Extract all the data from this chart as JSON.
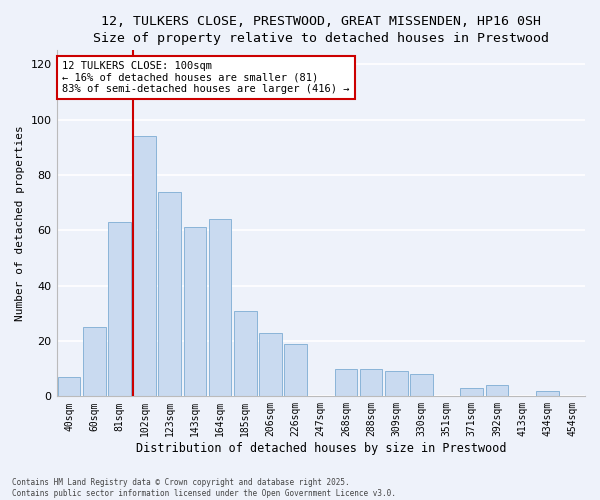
{
  "title": "12, TULKERS CLOSE, PRESTWOOD, GREAT MISSENDEN, HP16 0SH",
  "subtitle": "Size of property relative to detached houses in Prestwood",
  "xlabel": "Distribution of detached houses by size in Prestwood",
  "ylabel": "Number of detached properties",
  "bar_labels": [
    "40sqm",
    "60sqm",
    "81sqm",
    "102sqm",
    "123sqm",
    "143sqm",
    "164sqm",
    "185sqm",
    "206sqm",
    "226sqm",
    "247sqm",
    "268sqm",
    "288sqm",
    "309sqm",
    "330sqm",
    "351sqm",
    "371sqm",
    "392sqm",
    "413sqm",
    "434sqm",
    "454sqm"
  ],
  "bar_values": [
    7,
    25,
    63,
    94,
    74,
    61,
    64,
    31,
    23,
    19,
    0,
    10,
    10,
    9,
    8,
    0,
    3,
    4,
    0,
    2,
    0
  ],
  "bar_color": "#c9daf0",
  "bar_edge_color": "#8ab4d8",
  "vline_x_index": 3,
  "vline_color": "#cc0000",
  "annotation_title": "12 TULKERS CLOSE: 100sqm",
  "annotation_line1": "← 16% of detached houses are smaller (81)",
  "annotation_line2": "83% of semi-detached houses are larger (416) →",
  "annotation_box_color": "#ffffff",
  "annotation_box_edge": "#cc0000",
  "ylim": [
    0,
    125
  ],
  "yticks": [
    0,
    20,
    40,
    60,
    80,
    100,
    120
  ],
  "footnote1": "Contains HM Land Registry data © Crown copyright and database right 2025.",
  "footnote2": "Contains public sector information licensed under the Open Government Licence v3.0.",
  "bg_color": "#eef2fa",
  "grid_color": "#ffffff",
  "title_fontsize": 9.5,
  "subtitle_fontsize": 9,
  "tick_fontsize": 7,
  "ylabel_fontsize": 8,
  "xlabel_fontsize": 8.5
}
